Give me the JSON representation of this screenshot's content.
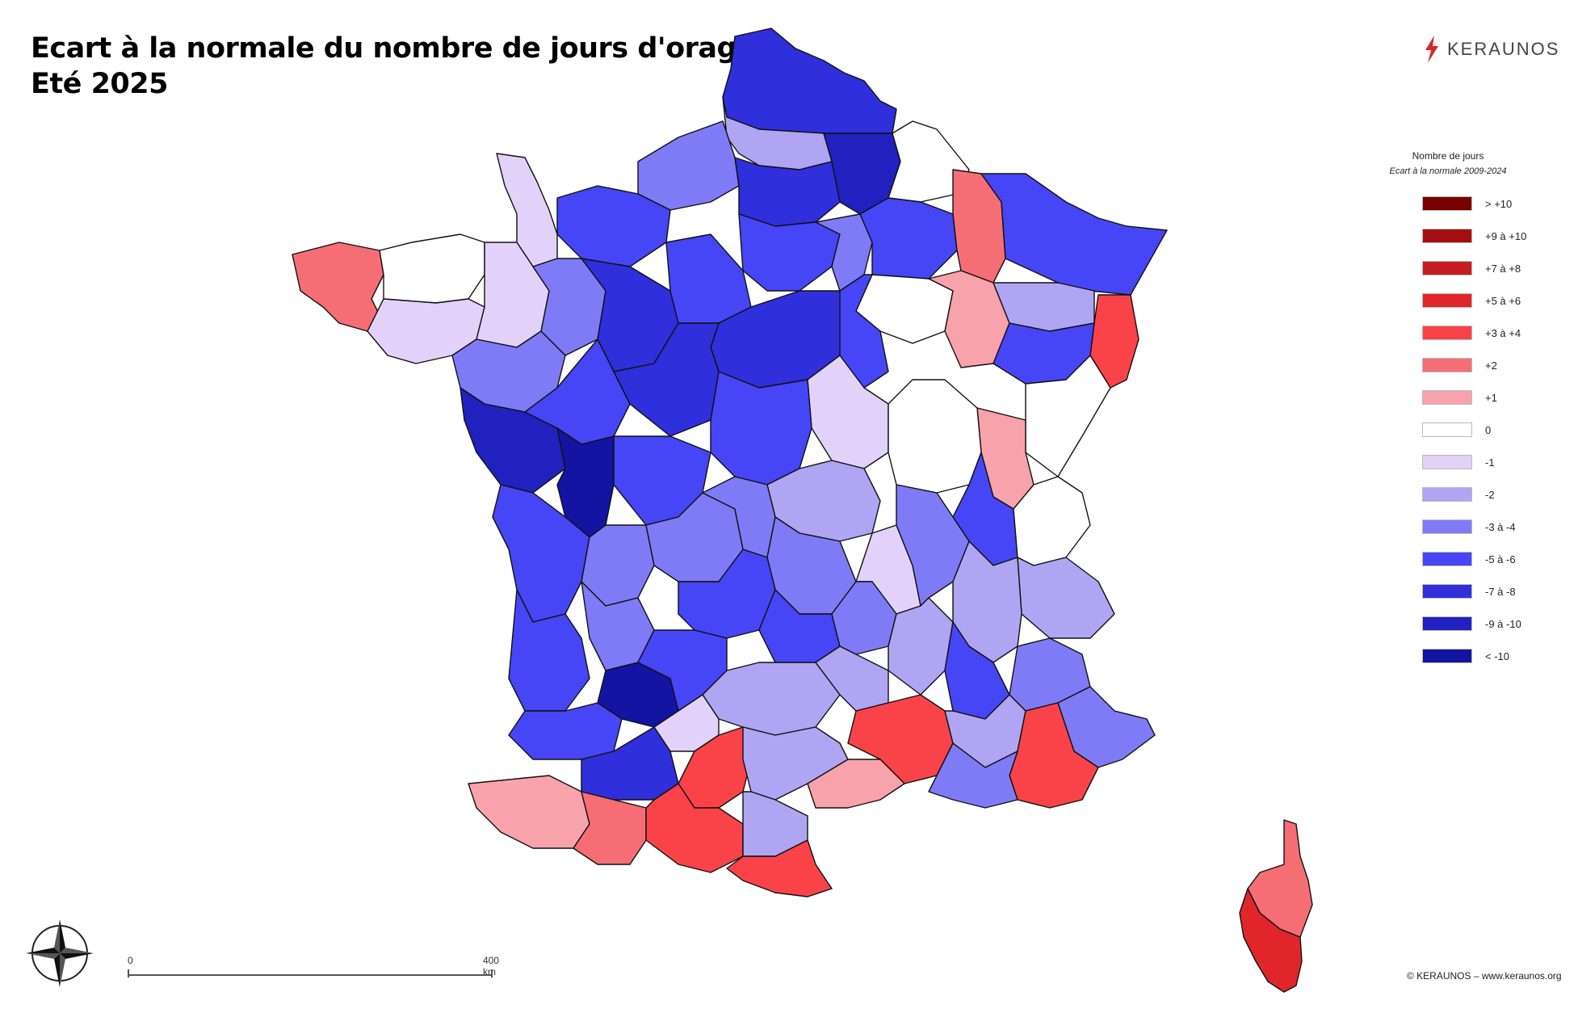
{
  "title": {
    "line1": "Ecart à la normale du nombre de jours d'orage",
    "line2": "Eté 2025"
  },
  "brand": {
    "name": "KERAUNOS",
    "icon": "lightning-bolt-icon",
    "color": "#d62828"
  },
  "legend": {
    "title": "Nombre de jours",
    "subtitle": "Ecart à la normale 2009-2024",
    "items": [
      {
        "label": "> +10",
        "color": "#7a0000"
      },
      {
        "label": "+9 à +10",
        "color": "#a30f12"
      },
      {
        "label": "+7 à +8",
        "color": "#c41d22"
      },
      {
        "label": "+5 à +6",
        "color": "#e0262b"
      },
      {
        "label": "+3 à +4",
        "color": "#f94349"
      },
      {
        "label": "+2",
        "color": "#f66e75"
      },
      {
        "label": "+1",
        "color": "#f8a2ac"
      },
      {
        "label": "0",
        "color": "#ffffff"
      },
      {
        "label": "-1",
        "color": "#e2d2fa"
      },
      {
        "label": "-2",
        "color": "#b0a5f3"
      },
      {
        "label": "-3 à -4",
        "color": "#7f7bf6"
      },
      {
        "label": "-5 à -6",
        "color": "#4646f6"
      },
      {
        "label": "-7 à -8",
        "color": "#2f2fdb"
      },
      {
        "label": "-9 à -10",
        "color": "#2121c0"
      },
      {
        "label": "< -10",
        "color": "#1414a3"
      }
    ]
  },
  "scale": {
    "start": "0",
    "end": "400 km"
  },
  "copyright": "© KERAUNOS – www.keraunos.org",
  "compass_icon": "compass-rose-icon"
}
